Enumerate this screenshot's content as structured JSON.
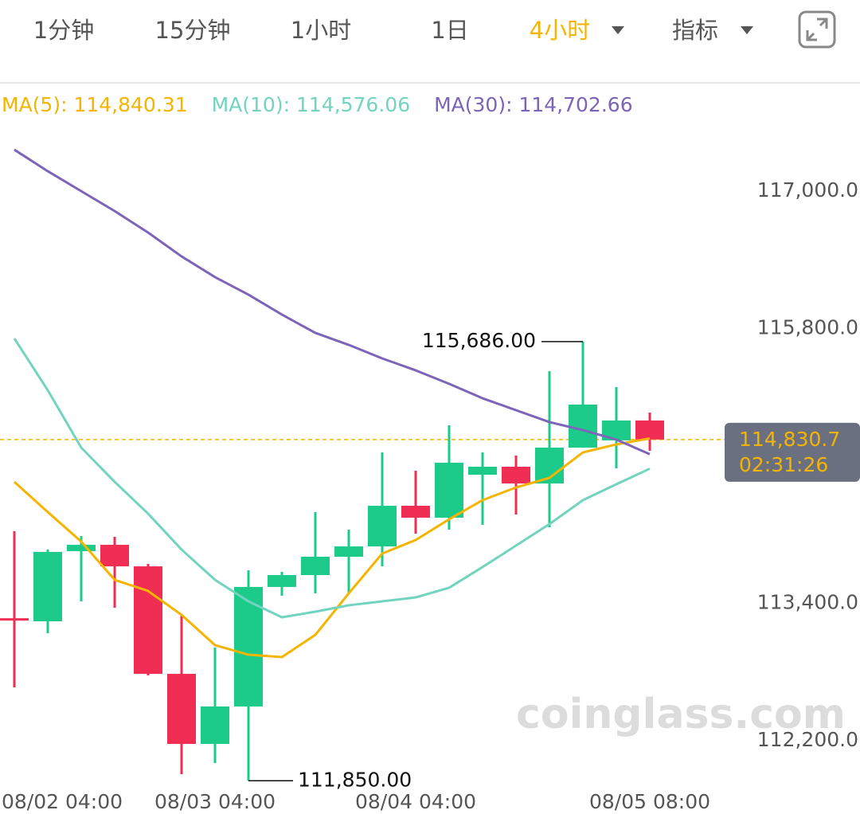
{
  "tabs": [
    "1分钟",
    "15分钟",
    "1小时",
    "1日",
    "4小时"
  ],
  "active_tab": 4,
  "indicator_menu": "指标",
  "chart_data": {
    "type": "candlestick",
    "categories": [
      "08/02 04:00",
      null,
      null,
      null,
      null,
      null,
      "08/03 04:00",
      null,
      null,
      null,
      null,
      null,
      "08/04 04:00",
      null,
      null,
      null,
      null,
      null,
      null,
      "08/05 08:00"
    ],
    "open": [
      113270,
      113243,
      113856,
      113911,
      113723,
      112784,
      112172,
      112499,
      113543,
      113647,
      113807,
      113897,
      114252,
      114148,
      114523,
      114593,
      114447,
      114760,
      114823,
      114997
    ],
    "high": [
      114030,
      113870,
      113988,
      113981,
      113744,
      113292,
      113014,
      113689,
      113675,
      114197,
      114043,
      114718,
      114558,
      114955,
      114718,
      114690,
      115428,
      115686,
      115289,
      115066
    ],
    "low": [
      112666,
      113139,
      113417,
      113362,
      112770,
      111908,
      112005,
      111850,
      113466,
      113487,
      113487,
      113723,
      114009,
      114043,
      114085,
      114176,
      114064,
      114760,
      114579,
      114732
    ],
    "close": [
      113260,
      113849,
      113911,
      113723,
      112784,
      112172,
      112499,
      113543,
      113647,
      113807,
      113897,
      114252,
      114148,
      114628,
      114593,
      114447,
      114760,
      115136,
      114997,
      114830.7
    ],
    "up_color": "#1ccb8a",
    "down_color": "#f02d52",
    "series": [
      {
        "name": "MA(5): 114,840.31",
        "color": "#f5b400",
        "values": [
          114461,
          114197,
          113939,
          113605,
          113508,
          113299,
          113035,
          112951,
          112930,
          113125,
          113487,
          113835,
          113953,
          114134,
          114301,
          114412,
          114496,
          114718,
          114788,
          114840.31
        ]
      },
      {
        "name": "MA(10): 114,576.06",
        "color": "#72d4bf",
        "values": [
          115713,
          115261,
          114760,
          114461,
          114183,
          113870,
          113605,
          113417,
          113278,
          113327,
          113383,
          113417,
          113452,
          113536,
          113717,
          113904,
          114092,
          114301,
          114440,
          114576.06
        ]
      },
      {
        "name": "MA(30): 114,702.66",
        "color": "#7c65b9",
        "values": [
          117362,
          117174,
          117000,
          116826,
          116638,
          116430,
          116249,
          116096,
          115922,
          115762,
          115657,
          115539,
          115435,
          115317,
          115191,
          115087,
          114983,
          114913,
          114830,
          114702.66
        ]
      }
    ],
    "ylim": [
      111800,
      117900
    ],
    "yticks": [
      {
        "value": 112200,
        "label": "112,200.0"
      },
      {
        "value": 113400,
        "label": "113,400.0"
      },
      {
        "value": 115800,
        "label": "115,800.0"
      },
      {
        "value": 117000,
        "label": "117,000.0"
      }
    ],
    "grid": false,
    "current_price": 114830.7,
    "current_price_label": "114,830.7",
    "countdown": "02:31:26",
    "high_label": "115,686.00",
    "low_label": "111,850.00",
    "watermark": "coinglass.com"
  }
}
